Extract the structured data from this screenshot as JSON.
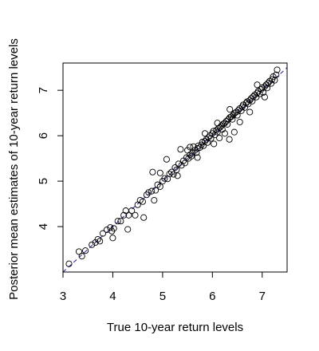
{
  "chart_data": {
    "type": "scatter",
    "title": "",
    "xlabel": "True 10-year return levels",
    "ylabel": "Posterior mean estimates of 10-year return levels",
    "xlim": [
      3.0,
      7.5
    ],
    "ylim": [
      3.0,
      7.6
    ],
    "xticks": [
      3,
      4,
      5,
      6,
      7
    ],
    "yticks": [
      4,
      5,
      6,
      7
    ],
    "grid": false,
    "reference_line": {
      "type": "y=x",
      "color": "#1a1aa0",
      "style": "dashed"
    },
    "point_style": {
      "shape": "open-circle",
      "color": "#000000"
    },
    "points": [
      [
        3.12,
        3.18
      ],
      [
        3.32,
        3.45
      ],
      [
        3.38,
        3.35
      ],
      [
        3.45,
        3.47
      ],
      [
        3.58,
        3.6
      ],
      [
        3.65,
        3.65
      ],
      [
        3.7,
        3.72
      ],
      [
        3.74,
        3.68
      ],
      [
        3.8,
        3.85
      ],
      [
        3.88,
        3.93
      ],
      [
        3.95,
        3.98
      ],
      [
        3.98,
        3.9
      ],
      [
        4.0,
        3.75
      ],
      [
        4.02,
        3.96
      ],
      [
        4.1,
        4.12
      ],
      [
        4.16,
        4.12
      ],
      [
        4.22,
        4.25
      ],
      [
        4.26,
        4.35
      ],
      [
        4.3,
        3.94
      ],
      [
        4.32,
        4.25
      ],
      [
        4.38,
        4.35
      ],
      [
        4.45,
        4.25
      ],
      [
        4.5,
        4.48
      ],
      [
        4.55,
        4.58
      ],
      [
        4.6,
        4.55
      ],
      [
        4.62,
        4.2
      ],
      [
        4.68,
        4.7
      ],
      [
        4.72,
        4.75
      ],
      [
        4.78,
        4.78
      ],
      [
        4.8,
        5.2
      ],
      [
        4.83,
        4.58
      ],
      [
        4.86,
        4.8
      ],
      [
        4.9,
        4.92
      ],
      [
        4.95,
        4.88
      ],
      [
        5.0,
        5.0
      ],
      [
        5.04,
        5.06
      ],
      [
        5.08,
        5.48
      ],
      [
        5.1,
        5.05
      ],
      [
        5.14,
        5.16
      ],
      [
        5.18,
        5.2
      ],
      [
        5.22,
        5.15
      ],
      [
        5.25,
        5.3
      ],
      [
        5.28,
        5.25
      ],
      [
        5.32,
        5.38
      ],
      [
        5.36,
        5.7
      ],
      [
        5.38,
        5.35
      ],
      [
        5.42,
        5.45
      ],
      [
        5.45,
        5.4
      ],
      [
        5.48,
        5.52
      ],
      [
        5.5,
        5.68
      ],
      [
        5.52,
        5.5
      ],
      [
        5.55,
        5.58
      ],
      [
        5.58,
        5.55
      ],
      [
        5.6,
        5.62
      ],
      [
        5.62,
        5.76
      ],
      [
        5.65,
        5.68
      ],
      [
        5.68,
        5.63
      ],
      [
        5.7,
        5.72
      ],
      [
        5.72,
        5.78
      ],
      [
        5.75,
        5.74
      ],
      [
        5.78,
        5.8
      ],
      [
        5.8,
        5.86
      ],
      [
        5.82,
        5.78
      ],
      [
        5.85,
        5.88
      ],
      [
        5.88,
        5.92
      ],
      [
        5.9,
        5.85
      ],
      [
        5.92,
        5.96
      ],
      [
        5.95,
        6.0
      ],
      [
        5.97,
        5.94
      ],
      [
        6.0,
        6.05
      ],
      [
        6.02,
        6.1
      ],
      [
        6.03,
        5.82
      ],
      [
        6.05,
        6.02
      ],
      [
        6.08,
        6.12
      ],
      [
        6.1,
        6.08
      ],
      [
        6.12,
        6.16
      ],
      [
        6.14,
        5.95
      ],
      [
        6.15,
        6.18
      ],
      [
        6.18,
        6.22
      ],
      [
        6.2,
        6.14
      ],
      [
        6.22,
        6.26
      ],
      [
        6.25,
        6.28
      ],
      [
        6.28,
        6.32
      ],
      [
        6.3,
        6.25
      ],
      [
        6.32,
        6.36
      ],
      [
        6.34,
        5.92
      ],
      [
        6.35,
        6.4
      ],
      [
        6.38,
        6.42
      ],
      [
        6.4,
        6.36
      ],
      [
        6.42,
        6.46
      ],
      [
        6.44,
        6.08
      ],
      [
        6.45,
        6.5
      ],
      [
        6.48,
        6.52
      ],
      [
        6.5,
        6.45
      ],
      [
        6.52,
        6.56
      ],
      [
        6.55,
        6.6
      ],
      [
        6.58,
        6.55
      ],
      [
        6.6,
        6.64
      ],
      [
        6.62,
        6.68
      ],
      [
        6.65,
        6.62
      ],
      [
        6.68,
        6.72
      ],
      [
        6.7,
        6.75
      ],
      [
        6.72,
        6.7
      ],
      [
        6.75,
        6.78
      ],
      [
        6.78,
        6.82
      ],
      [
        6.8,
        6.76
      ],
      [
        6.82,
        6.86
      ],
      [
        6.85,
        6.9
      ],
      [
        6.88,
        6.85
      ],
      [
        6.9,
        6.94
      ],
      [
        6.92,
        6.98
      ],
      [
        6.95,
        6.92
      ],
      [
        6.98,
        7.02
      ],
      [
        7.0,
        7.06
      ],
      [
        7.02,
        6.95
      ],
      [
        7.05,
        7.08
      ],
      [
        7.08,
        7.12
      ],
      [
        7.1,
        7.05
      ],
      [
        7.12,
        7.16
      ],
      [
        7.15,
        7.2
      ],
      [
        7.18,
        7.15
      ],
      [
        7.2,
        7.24
      ],
      [
        7.22,
        7.3
      ],
      [
        7.25,
        7.22
      ],
      [
        7.28,
        7.34
      ],
      [
        7.3,
        7.45
      ],
      [
        6.35,
        6.58
      ],
      [
        6.55,
        6.3
      ],
      [
        6.75,
        6.52
      ],
      [
        6.9,
        7.12
      ],
      [
        7.05,
        6.85
      ],
      [
        5.7,
        5.52
      ],
      [
        5.55,
        5.75
      ],
      [
        5.85,
        6.05
      ],
      [
        6.1,
        6.28
      ],
      [
        6.25,
        6.05
      ],
      [
        4.95,
        5.18
      ],
      [
        5.3,
        5.12
      ]
    ]
  }
}
